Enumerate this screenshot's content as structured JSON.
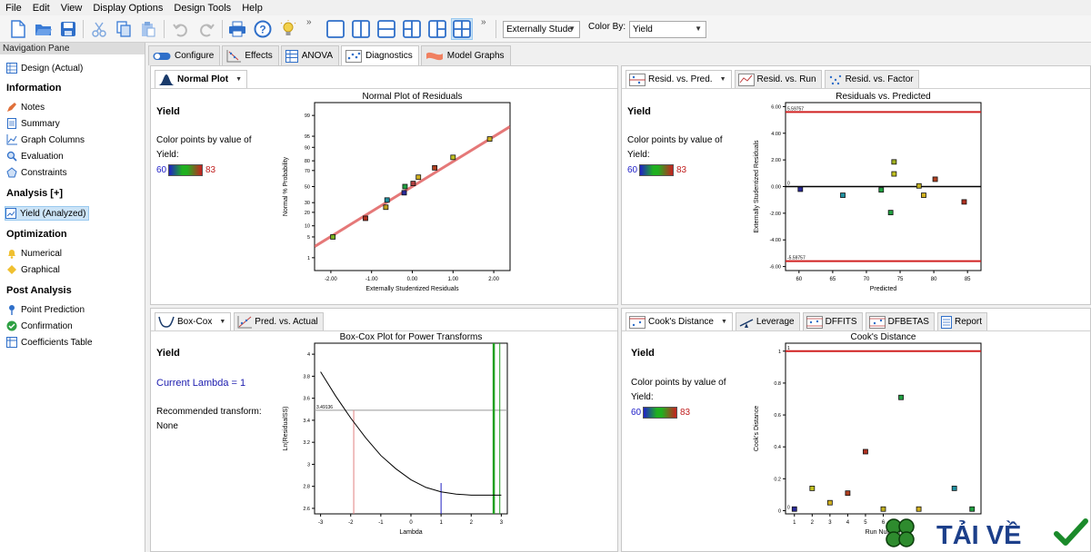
{
  "menu": [
    "File",
    "Edit",
    "View",
    "Display Options",
    "Design Tools",
    "Help"
  ],
  "toolbar": {
    "residual_type": "Externally Stude",
    "color_by_label": "Color By:",
    "color_by_value": "Yield"
  },
  "nav": {
    "header": "Navigation Pane",
    "design": "Design (Actual)",
    "information_title": "Information",
    "information_items": [
      "Notes",
      "Summary",
      "Graph Columns",
      "Evaluation",
      "Constraints"
    ],
    "analysis_title": "Analysis [+]",
    "analysis_item": "Yield (Analyzed)",
    "optimization_title": "Optimization",
    "optimization_items": [
      "Numerical",
      "Graphical"
    ],
    "post_title": "Post Analysis",
    "post_items": [
      "Point Prediction",
      "Confirmation",
      "Coefficients Table"
    ]
  },
  "main_tabs": [
    "Configure",
    "Effects",
    "ANOVA",
    "Diagnostics",
    "Model Graphs"
  ],
  "panels": {
    "normal": {
      "tab": "Normal Plot",
      "response": "Yield",
      "color_text_1": "Color points by value of",
      "color_text_2": "Yield:",
      "min": "60",
      "max": "83"
    },
    "resid": {
      "tabs": [
        "Resid. vs. Pred.",
        "Resid. vs. Run",
        "Resid. vs. Factor"
      ],
      "response": "Yield",
      "color_text_1": "Color points by value of",
      "color_text_2": "Yield:",
      "min": "60",
      "max": "83"
    },
    "boxcox": {
      "tabs": [
        "Box-Cox",
        "Pred. vs. Actual"
      ],
      "response": "Yield",
      "lambda_text": "Current Lambda = 1",
      "rec_label": "Recommended transform:",
      "rec_value": "None"
    },
    "cooks": {
      "tabs": [
        "Cook's Distance",
        "Leverage",
        "DFFITS",
        "DFBETAS",
        "Report"
      ],
      "response": "Yield",
      "color_text_1": "Color points by value of",
      "color_text_2": "Yield:",
      "min": "60",
      "max": "83"
    }
  },
  "chart_data": [
    {
      "type": "scatter",
      "title": "Normal Plot of Residuals",
      "xlabel": "Externally Studentized Residuals",
      "ylabel": "Normal % Probability",
      "xlim": [
        -2.4,
        2.4
      ],
      "x_ticks": [
        "-2.00",
        "-1.00",
        "0.00",
        "1.00",
        "2.00"
      ],
      "y_ticks": [
        "1",
        "5",
        "10",
        "20",
        "30",
        "50",
        "70",
        "80",
        "90",
        "95",
        "99"
      ],
      "points": [
        {
          "x": -1.95,
          "y": 5,
          "color": "#7ab020"
        },
        {
          "x": -1.15,
          "y": 15,
          "color": "#b03020"
        },
        {
          "x": -0.65,
          "y": 25,
          "color": "#c0a020"
        },
        {
          "x": -0.62,
          "y": 33,
          "color": "#2090a0"
        },
        {
          "x": -0.2,
          "y": 42,
          "color": "#2a2a9a"
        },
        {
          "x": -0.18,
          "y": 50,
          "color": "#20a040"
        },
        {
          "x": 0.02,
          "y": 54,
          "color": "#b04040"
        },
        {
          "x": 0.15,
          "y": 62,
          "color": "#d0b020"
        },
        {
          "x": 0.55,
          "y": 73,
          "color": "#b04020"
        },
        {
          "x": 1.0,
          "y": 83,
          "color": "#c0c020"
        },
        {
          "x": 1.9,
          "y": 94,
          "color": "#d0b020"
        }
      ],
      "fit_line": [
        [
          -2.4,
          2.5
        ],
        [
          2.4,
          97.5
        ]
      ]
    },
    {
      "type": "scatter",
      "title": "Residuals vs. Predicted",
      "xlabel": "Predicted",
      "ylabel": "Externally Studentized Residuals",
      "xlim": [
        58,
        87
      ],
      "ylim": [
        -6.3,
        6.3
      ],
      "x_ticks": [
        60,
        65,
        70,
        75,
        80,
        85
      ],
      "y_ticks": [
        "-6.00",
        "-4.00",
        "-2.00",
        "0.00",
        "2.00",
        "4.00",
        "6.00"
      ],
      "limit_labels": [
        "5.59757",
        "-5.59757",
        "0"
      ],
      "limits": [
        5.59757,
        -5.59757
      ],
      "points": [
        {
          "x": 60.2,
          "y": -0.2,
          "color": "#2a2a9a"
        },
        {
          "x": 66.5,
          "y": -0.65,
          "color": "#2090a0"
        },
        {
          "x": 72.2,
          "y": -0.25,
          "color": "#20a040"
        },
        {
          "x": 73.6,
          "y": -1.95,
          "color": "#20a040"
        },
        {
          "x": 74.1,
          "y": 1.85,
          "color": "#a0b020"
        },
        {
          "x": 74.1,
          "y": 0.95,
          "color": "#c0c020"
        },
        {
          "x": 77.8,
          "y": 0.05,
          "color": "#c0b020"
        },
        {
          "x": 78.5,
          "y": -0.65,
          "color": "#d0b020"
        },
        {
          "x": 80.2,
          "y": 0.55,
          "color": "#b04020"
        },
        {
          "x": 84.5,
          "y": -1.15,
          "color": "#b03020"
        }
      ]
    },
    {
      "type": "line",
      "title": "Box-Cox Plot for Power Transforms",
      "xlabel": "Lambda",
      "ylabel": "Ln(ResidualSS)",
      "xlim": [
        -3.2,
        3.2
      ],
      "ylim": [
        2.55,
        4.1
      ],
      "x_ticks": [
        -3,
        -2,
        -1,
        0,
        1,
        2,
        3
      ],
      "y_ticks": [
        "2.6",
        "2.8",
        "3",
        "3.2",
        "3.4",
        "3.6",
        "3.8",
        "4"
      ],
      "ref_label": "3.49136",
      "ref_level": 3.49136,
      "best_lambda": 2.75,
      "ci_low": -1.9,
      "current_lambda": 1,
      "ci_high": 2.95,
      "curve": [
        [
          -3,
          3.84
        ],
        [
          -2.5,
          3.62
        ],
        [
          -2,
          3.42
        ],
        [
          -1.5,
          3.24
        ],
        [
          -1,
          3.08
        ],
        [
          -0.5,
          2.96
        ],
        [
          0,
          2.86
        ],
        [
          0.5,
          2.79
        ],
        [
          1,
          2.75
        ],
        [
          1.5,
          2.73
        ],
        [
          2,
          2.72
        ],
        [
          2.5,
          2.72
        ],
        [
          3,
          2.72
        ]
      ]
    },
    {
      "type": "scatter",
      "title": "Cook's Distance",
      "xlabel": "Run Number",
      "ylabel": "Cook's Distance",
      "xlim": [
        0.5,
        11.5
      ],
      "ylim": [
        -0.02,
        1.05
      ],
      "x_ticks": [
        1,
        2,
        3,
        4,
        5,
        6
      ],
      "y_ticks": [
        "0",
        "0.2",
        "0.4",
        "0.6",
        "0.8",
        "1"
      ],
      "limit_labels": [
        "1",
        "0"
      ],
      "limit": 1,
      "points": [
        {
          "x": 1,
          "y": 0.01,
          "color": "#2a2a9a"
        },
        {
          "x": 2,
          "y": 0.14,
          "color": "#c0c020"
        },
        {
          "x": 3,
          "y": 0.05,
          "color": "#d0b020"
        },
        {
          "x": 4,
          "y": 0.11,
          "color": "#b04020"
        },
        {
          "x": 5,
          "y": 0.37,
          "color": "#b03020"
        },
        {
          "x": 6,
          "y": 0.01,
          "color": "#c0b020"
        },
        {
          "x": 7,
          "y": 0.71,
          "color": "#20a040"
        },
        {
          "x": 8,
          "y": 0.01,
          "color": "#d0b020"
        },
        {
          "x": 10,
          "y": 0.14,
          "color": "#2090a0"
        },
        {
          "x": 11,
          "y": 0.01,
          "color": "#20a040"
        }
      ]
    }
  ],
  "watermark": {
    "text": "TẢI VỀ"
  }
}
